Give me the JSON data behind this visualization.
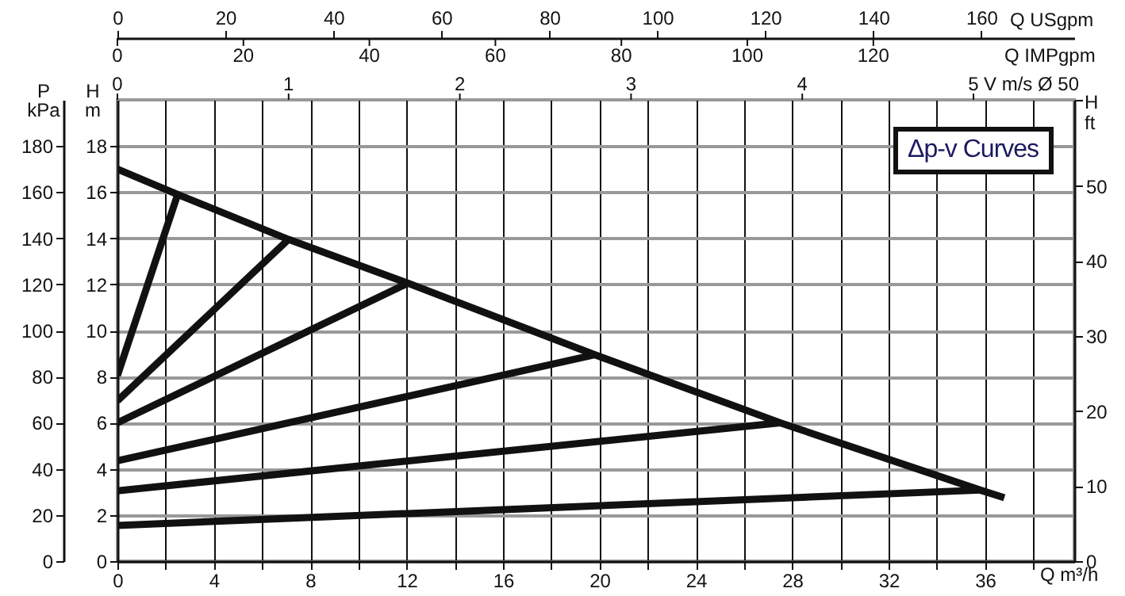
{
  "chart_data": {
    "type": "line",
    "title": "Δp-v Curves",
    "xlabel": "Q m³/h",
    "ylabel": "H m",
    "y2label": "H ft",
    "y3label": "P kPa",
    "x2label": "Q USgpm",
    "xlim": [
      0,
      39.7
    ],
    "xticks": [
      0,
      {
        "value": 2,
        "label": null
      },
      4,
      {
        "value": 6,
        "label": null
      },
      8,
      {
        "value": 10,
        "label": null
      },
      12,
      {
        "value": 14,
        "label": null
      },
      16,
      {
        "value": 18,
        "label": null
      },
      20,
      {
        "value": 22,
        "label": null
      },
      24,
      {
        "value": 26,
        "label": null
      },
      28,
      {
        "value": 30,
        "label": null
      },
      32,
      {
        "value": 34,
        "label": null
      },
      36,
      {
        "value": 38,
        "label": null
      }
    ],
    "ylim": [
      0,
      20
    ],
    "yticks": [
      0,
      2,
      4,
      6,
      8,
      10,
      12,
      14,
      16,
      18
    ],
    "y2lim": [
      0,
      61.5
    ],
    "y2ticks": [
      0,
      10,
      20,
      30,
      40,
      50,
      {
        "value": 61.5,
        "label": null
      }
    ],
    "y3lim": [
      0,
      200
    ],
    "y3ticks": [
      0,
      20,
      40,
      60,
      80,
      100,
      120,
      140,
      160,
      180
    ],
    "x2lim": [
      0,
      177.2
    ],
    "x2ticks": [
      0,
      20,
      40,
      60,
      80,
      100,
      120,
      140,
      160
    ],
    "annotations": [
      "Q IMPgpm",
      "0",
      "20",
      "40",
      "60",
      "80",
      "100",
      "120",
      "V m/s Ø 50",
      "0",
      "1",
      "2",
      "3",
      "4",
      "5"
    ],
    "grid": true,
    "series": [
      {
        "color": "#111111",
        "x": [
          0,
          2.5,
          7.1,
          12.05,
          19.8,
          27.5,
          35.8,
          36.8
        ],
        "values": [
          17,
          15.9,
          13.95,
          12.05,
          8.95,
          6,
          3.08,
          2.75
        ]
      },
      {
        "color": "#111111",
        "x": [
          0,
          2.5
        ],
        "values": [
          8.05,
          15.9
        ]
      },
      {
        "color": "#111111",
        "x": [
          0,
          7.1
        ],
        "values": [
          6.95,
          13.95
        ]
      },
      {
        "color": "#111111",
        "x": [
          0,
          12.05
        ],
        "values": [
          6,
          12.05
        ]
      },
      {
        "color": "#111111",
        "x": [
          0,
          19.8
        ],
        "values": [
          4.35,
          8.95
        ]
      },
      {
        "color": "#111111",
        "x": [
          0,
          27.5
        ],
        "values": [
          3.05,
          6
        ]
      },
      {
        "color": "#111111",
        "x": [
          0,
          35.8
        ],
        "values": [
          1.55,
          3.08
        ]
      }
    ]
  }
}
